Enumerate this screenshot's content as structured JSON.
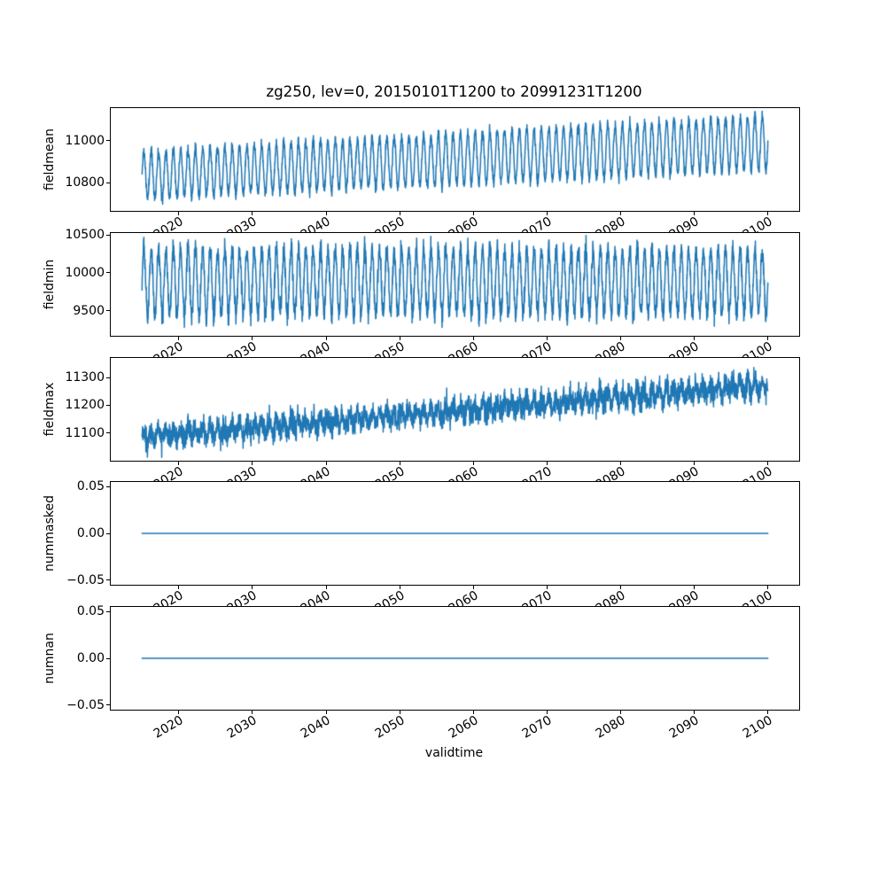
{
  "figure": {
    "title": "zg250, lev=0, 20150101T1200 to 20991231T1200",
    "xlabel": "validtime",
    "line_color": "#1f77b4",
    "axis_color": "#000000",
    "background": "#ffffff",
    "xlim": [
      2010.75,
      2104.25
    ],
    "xticks": [
      2020,
      2030,
      2040,
      2050,
      2060,
      2070,
      2080,
      2090,
      2100
    ],
    "xtick_labels": [
      "2020",
      "2030",
      "2040",
      "2050",
      "2060",
      "2070",
      "2080",
      "2090",
      "2100"
    ],
    "x_data_start": 2015.0,
    "x_data_end": 2100.0
  },
  "chart_data": [
    {
      "type": "line",
      "name": "fieldmean",
      "ylabel": "fieldmean",
      "ylim": [
        10665,
        11155
      ],
      "yticks": [
        10800,
        11000
      ],
      "ytick_labels": [
        "10800",
        "11000"
      ],
      "signal": {
        "kind": "seasonal_trend",
        "base_start": 10835,
        "base_end": 10990,
        "amp_start": 112,
        "amp_end": 130,
        "noise_sd": 13,
        "period_years": 1,
        "samples_per_year": 40,
        "seed": 11
      }
    },
    {
      "type": "line",
      "name": "fieldmin",
      "ylabel": "fieldmin",
      "ylim": [
        9171,
        10524
      ],
      "yticks": [
        9500,
        10000,
        10500
      ],
      "ytick_labels": [
        "9500",
        "10000",
        "10500"
      ],
      "signal": {
        "kind": "seasonal_trend",
        "base_start": 9880,
        "base_end": 9880,
        "amp_start": 430,
        "amp_end": 430,
        "noise_sd": 70,
        "period_years": 1,
        "samples_per_year": 40,
        "seed": 23
      }
    },
    {
      "type": "line",
      "name": "fieldmax",
      "ylabel": "fieldmax",
      "ylim": [
        11000,
        11371
      ],
      "yticks": [
        11100,
        11200,
        11300
      ],
      "ytick_labels": [
        "11100",
        "11200",
        "11300"
      ],
      "signal": {
        "kind": "seasonal_trend",
        "base_start": 11085,
        "base_end": 11272,
        "amp_start": 18,
        "amp_end": 22,
        "noise_sd": 22,
        "period_years": 1,
        "samples_per_year": 40,
        "seed": 37
      }
    },
    {
      "type": "line",
      "name": "nummasked",
      "ylabel": "nummasked",
      "ylim": [
        -0.055,
        0.055
      ],
      "yticks": [
        -0.05,
        0.0,
        0.05
      ],
      "ytick_labels": [
        "−0.05",
        "0.00",
        "0.05"
      ],
      "signal": {
        "kind": "constant",
        "value": 0.0
      }
    },
    {
      "type": "line",
      "name": "numnan",
      "ylabel": "numnan",
      "ylim": [
        -0.055,
        0.055
      ],
      "yticks": [
        -0.05,
        0.0,
        0.05
      ],
      "ytick_labels": [
        "−0.05",
        "0.00",
        "0.05"
      ],
      "signal": {
        "kind": "constant",
        "value": 0.0
      }
    }
  ]
}
